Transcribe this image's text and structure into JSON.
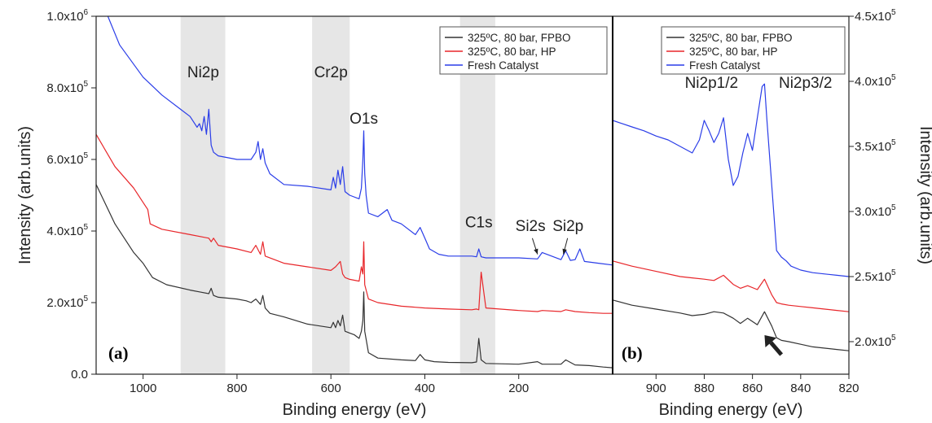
{
  "chart_data": [
    {
      "panel": "(a)",
      "type": "line",
      "xlabel": "Binding energy (eV)",
      "ylabel": "Intensity (arb.units)",
      "xlim": [
        1100,
        0
      ],
      "ylim": [
        0,
        1000000
      ],
      "x_ticks": [
        1000,
        800,
        600,
        400,
        200
      ],
      "y_ticks": [
        {
          "value": 0,
          "label": "0.0"
        },
        {
          "value": 200000,
          "label": "2.0x10",
          "exp": "5"
        },
        {
          "value": 400000,
          "label": "4.0x10",
          "exp": "5"
        },
        {
          "value": 600000,
          "label": "6.0x10",
          "exp": "5"
        },
        {
          "value": 800000,
          "label": "8.0x10",
          "exp": "5"
        },
        {
          "value": 1000000,
          "label": "1.0x10",
          "exp": "6"
        }
      ],
      "shaded_regions": [
        {
          "name": "Ni2p",
          "from": 920,
          "to": 825
        },
        {
          "name": "Cr2p",
          "from": 640,
          "to": 560
        },
        {
          "name": "",
          "from": 325,
          "to": 250
        }
      ],
      "annotations": [
        {
          "text": "Ni2p",
          "x": 872,
          "y": 830000
        },
        {
          "text": "Cr2p",
          "x": 600,
          "y": 830000
        },
        {
          "text": "O1s",
          "x": 530,
          "y": 700000
        },
        {
          "text": "C1s",
          "x": 285,
          "y": 410000
        },
        {
          "text": "Si2s",
          "x": 175,
          "y": 400000
        },
        {
          "text": "Si2p",
          "x": 95,
          "y": 400000
        }
      ],
      "series": [
        {
          "name": "325ºC, 80 bar, FPBO",
          "color": "#333333",
          "x": [
            1100,
            1060,
            1020,
            1000,
            990,
            980,
            950,
            900,
            880,
            860,
            855,
            850,
            840,
            800,
            780,
            770,
            760,
            750,
            745,
            740,
            730,
            700,
            650,
            600,
            595,
            590,
            585,
            580,
            575,
            570,
            560,
            550,
            540,
            535,
            532,
            530,
            528,
            520,
            500,
            450,
            420,
            410,
            400,
            380,
            350,
            300,
            290,
            285,
            280,
            270,
            200,
            160,
            150,
            110,
            100,
            80,
            50,
            20,
            0
          ],
          "y": [
            530000,
            420000,
            340000,
            310000,
            290000,
            270000,
            250000,
            235000,
            230000,
            225000,
            240000,
            220000,
            215000,
            210000,
            205000,
            200000,
            210000,
            195000,
            220000,
            185000,
            170000,
            160000,
            140000,
            130000,
            145000,
            130000,
            150000,
            135000,
            165000,
            120000,
            115000,
            110000,
            100000,
            120000,
            150000,
            230000,
            120000,
            60000,
            45000,
            40000,
            38000,
            55000,
            40000,
            35000,
            33000,
            32000,
            34000,
            100000,
            40000,
            30000,
            28000,
            35000,
            28000,
            28000,
            40000,
            26000,
            24000,
            20000,
            18000
          ]
        },
        {
          "name": "325ºC, 80 bar, HP",
          "color": "#e8262a",
          "x": [
            1100,
            1060,
            1020,
            1000,
            990,
            985,
            960,
            900,
            860,
            855,
            850,
            840,
            800,
            770,
            760,
            750,
            745,
            740,
            700,
            650,
            600,
            590,
            580,
            575,
            570,
            560,
            540,
            535,
            532,
            530,
            528,
            520,
            500,
            450,
            400,
            350,
            300,
            290,
            285,
            280,
            270,
            200,
            160,
            150,
            110,
            100,
            80,
            50,
            20,
            0
          ],
          "y": [
            670000,
            580000,
            520000,
            480000,
            460000,
            420000,
            405000,
            390000,
            380000,
            370000,
            380000,
            360000,
            350000,
            340000,
            360000,
            335000,
            370000,
            330000,
            310000,
            300000,
            290000,
            300000,
            315000,
            280000,
            270000,
            265000,
            260000,
            300000,
            280000,
            370000,
            250000,
            210000,
            200000,
            190000,
            185000,
            182000,
            180000,
            182000,
            180000,
            285000,
            185000,
            178000,
            175000,
            178000,
            175000,
            180000,
            175000,
            172000,
            170000,
            170000
          ]
        },
        {
          "name": "Fresh Catalyst",
          "color": "#2a3de8",
          "x": [
            1075,
            1050,
            1000,
            960,
            920,
            900,
            885,
            880,
            875,
            870,
            865,
            860,
            855,
            850,
            840,
            800,
            770,
            760,
            755,
            750,
            745,
            740,
            730,
            700,
            650,
            600,
            595,
            590,
            585,
            580,
            575,
            570,
            560,
            540,
            535,
            532,
            530,
            528,
            525,
            520,
            500,
            480,
            470,
            450,
            420,
            410,
            400,
            390,
            370,
            350,
            300,
            290,
            285,
            280,
            270,
            200,
            160,
            150,
            110,
            100,
            90,
            80,
            70,
            60,
            30,
            0
          ],
          "y": [
            1000000,
            920000,
            830000,
            780000,
            740000,
            720000,
            690000,
            700000,
            680000,
            720000,
            670000,
            740000,
            640000,
            620000,
            610000,
            600000,
            600000,
            620000,
            650000,
            600000,
            630000,
            590000,
            560000,
            530000,
            525000,
            515000,
            550000,
            520000,
            570000,
            530000,
            580000,
            510000,
            500000,
            490000,
            520000,
            600000,
            680000,
            560000,
            500000,
            450000,
            440000,
            460000,
            430000,
            420000,
            390000,
            410000,
            380000,
            350000,
            335000,
            330000,
            330000,
            328000,
            350000,
            328000,
            325000,
            325000,
            322000,
            340000,
            320000,
            345000,
            318000,
            320000,
            350000,
            315000,
            310000,
            305000
          ]
        }
      ],
      "legend": {
        "position": "top-right"
      }
    },
    {
      "panel": "(b)",
      "type": "line",
      "xlabel": "Binding energy (eV)",
      "ylabel": "Intensity (arb.units)",
      "xlim": [
        918,
        820
      ],
      "ylim": [
        175000,
        450000
      ],
      "x_ticks": [
        900,
        880,
        860,
        840,
        820
      ],
      "y_ticks": [
        {
          "value": 200000,
          "label": "2.0x10",
          "exp": "5"
        },
        {
          "value": 250000,
          "label": "2.5x10",
          "exp": "5"
        },
        {
          "value": 300000,
          "label": "3.0x10",
          "exp": "5"
        },
        {
          "value": 350000,
          "label": "3.5x10",
          "exp": "5"
        },
        {
          "value": 400000,
          "label": "4.0x10",
          "exp": "5"
        },
        {
          "value": 450000,
          "label": "4.5x10",
          "exp": "5"
        }
      ],
      "annotations": [
        {
          "text": "Ni2p1/2",
          "x": 877,
          "y": 395000
        },
        {
          "text": "Ni2p3/2",
          "x": 838,
          "y": 395000
        }
      ],
      "arrow": {
        "tail": [
          848,
          190000
        ],
        "head": [
          855,
          205000
        ]
      },
      "series": [
        {
          "name": "325ºC, 80 bar, FPBO",
          "color": "#333333",
          "x": [
            918,
            910,
            900,
            890,
            885,
            880,
            876,
            872,
            868,
            865,
            862,
            858,
            855,
            852,
            850,
            848,
            845,
            840,
            835,
            830,
            825,
            820
          ],
          "y": [
            232000,
            228000,
            225000,
            222000,
            220000,
            221000,
            223000,
            222000,
            218000,
            214000,
            218000,
            213000,
            223000,
            212000,
            203000,
            201000,
            200000,
            198000,
            196000,
            195000,
            194000,
            193000
          ]
        },
        {
          "name": "325ºC, 80 bar, HP",
          "color": "#e8262a",
          "x": [
            918,
            910,
            900,
            890,
            885,
            880,
            876,
            872,
            868,
            865,
            862,
            858,
            855,
            852,
            850,
            848,
            845,
            840,
            835,
            830,
            825,
            820
          ],
          "y": [
            262000,
            258000,
            254000,
            250000,
            249000,
            248000,
            247000,
            251000,
            244000,
            241000,
            243000,
            240000,
            248000,
            236000,
            230000,
            229000,
            228000,
            227000,
            226000,
            225000,
            224000,
            223000
          ]
        },
        {
          "name": "Fresh Catalyst",
          "color": "#2a3de8",
          "x": [
            918,
            910,
            905,
            900,
            895,
            890,
            885,
            882,
            880,
            878,
            876,
            874,
            872,
            870,
            868,
            866,
            864,
            862,
            860,
            858,
            856,
            855,
            854,
            852,
            850,
            848,
            846,
            844,
            840,
            835,
            830,
            825,
            820
          ],
          "y": [
            370000,
            365000,
            362000,
            358000,
            355000,
            350000,
            345000,
            355000,
            370000,
            362000,
            353000,
            360000,
            372000,
            340000,
            320000,
            327000,
            345000,
            360000,
            347000,
            372000,
            396000,
            398000,
            370000,
            320000,
            270000,
            265000,
            262000,
            258000,
            255000,
            253000,
            252000,
            251000,
            250000
          ]
        }
      ],
      "legend": {
        "position": "top-right"
      }
    }
  ]
}
